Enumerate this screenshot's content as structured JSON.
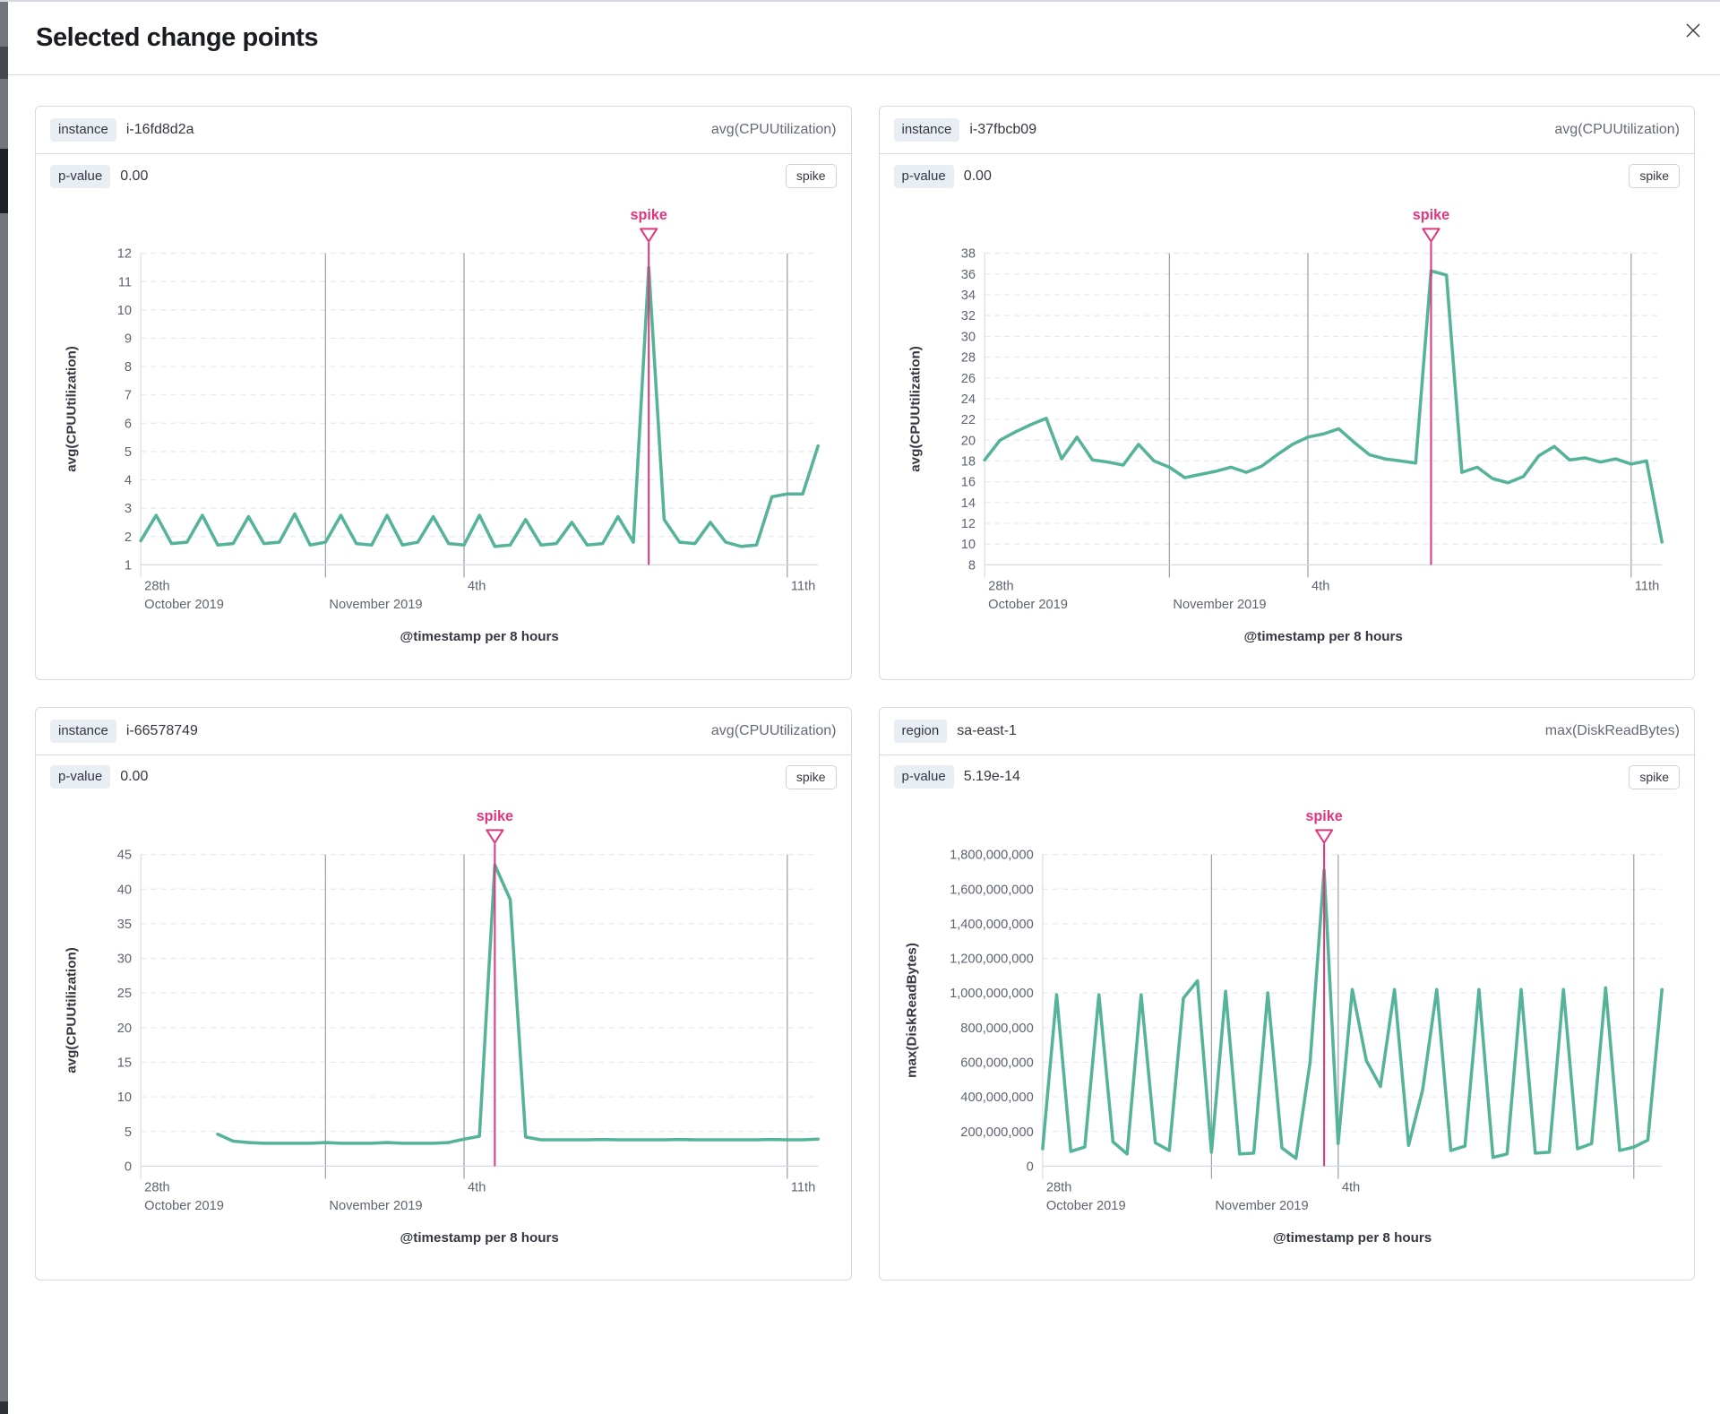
{
  "colors": {
    "series_green": "#54B399",
    "annotation_pink": "#E0367E",
    "h_gridline": "#E4E9F1",
    "date_gridline": "#9AA0A9",
    "edge_gridline": "#D9DEE5",
    "axis_line": "#D3DAE6",
    "tick_label": "#5E6470",
    "axis_title": "#343741"
  },
  "flyout": {
    "title": "Selected change points"
  },
  "panels": [
    {
      "group_badge": "instance",
      "group_value": "i-16fd8d2a",
      "metric_label": "avg(CPUUtilization)",
      "p_value_label": "p-value",
      "p_value": "0.00",
      "change_type": "spike"
    },
    {
      "group_badge": "instance",
      "group_value": "i-37fbcb09",
      "metric_label": "avg(CPUUtilization)",
      "p_value_label": "p-value",
      "p_value": "0.00",
      "change_type": "spike"
    },
    {
      "group_badge": "instance",
      "group_value": "i-66578749",
      "metric_label": "avg(CPUUtilization)",
      "p_value_label": "p-value",
      "p_value": "0.00",
      "change_type": "spike"
    },
    {
      "group_badge": "region",
      "group_value": "sa-east-1",
      "metric_label": "max(DiskReadBytes)",
      "p_value_label": "p-value",
      "p_value": "5.19e-14",
      "change_type": "spike"
    }
  ],
  "chart_data": [
    {
      "type": "line",
      "title": "instance i-16fd8d2a",
      "ylabel": "avg(CPUUtilization)",
      "xlabel": "@timestamp per 8 hours",
      "ylim": [
        1,
        12
      ],
      "y_tick_step": 1,
      "x_domain_days": 14.667,
      "points_per_day": 3,
      "x_gridlines": [
        {
          "day": 0,
          "line1": "28th",
          "line2": "October 2019",
          "edge": true
        },
        {
          "day": 4,
          "line2": "November 2019"
        },
        {
          "day": 7,
          "line1": "4th"
        },
        {
          "day": 14,
          "line1": "11th"
        }
      ],
      "annotation": {
        "label": "spike",
        "index": 33
      },
      "values": [
        1.85,
        2.75,
        1.75,
        1.8,
        2.75,
        1.7,
        1.75,
        2.7,
        1.75,
        1.8,
        2.8,
        1.7,
        1.8,
        2.75,
        1.75,
        1.7,
        2.75,
        1.7,
        1.8,
        2.7,
        1.75,
        1.7,
        2.75,
        1.65,
        1.7,
        2.6,
        1.7,
        1.75,
        2.5,
        1.7,
        1.75,
        2.7,
        1.8,
        11.5,
        2.6,
        1.8,
        1.75,
        2.5,
        1.8,
        1.65,
        1.7,
        3.4,
        3.5,
        3.5,
        5.2
      ]
    },
    {
      "type": "line",
      "title": "instance i-37fbcb09",
      "ylabel": "avg(CPUUtilization)",
      "xlabel": "@timestamp per 8 hours",
      "ylim": [
        8,
        38
      ],
      "y_tick_step": 2,
      "x_domain_days": 14.667,
      "points_per_day": 3,
      "x_gridlines": [
        {
          "day": 0,
          "line1": "28th",
          "line2": "October 2019",
          "edge": true
        },
        {
          "day": 4,
          "line2": "November 2019"
        },
        {
          "day": 7,
          "line1": "4th"
        },
        {
          "day": 14,
          "line1": "11th"
        }
      ],
      "annotation": {
        "label": "spike",
        "index": 29
      },
      "values": [
        18.1,
        20.0,
        20.8,
        21.5,
        22.1,
        18.2,
        20.3,
        18.1,
        17.9,
        17.6,
        19.6,
        18.0,
        17.4,
        16.4,
        16.7,
        17.0,
        17.4,
        16.9,
        17.5,
        18.6,
        19.6,
        20.3,
        20.6,
        21.1,
        19.8,
        18.6,
        18.2,
        18.0,
        17.8,
        36.3,
        35.9,
        16.9,
        17.4,
        16.3,
        15.9,
        16.5,
        18.5,
        19.4,
        18.1,
        18.3,
        17.9,
        18.2,
        17.7,
        18.0,
        10.2
      ]
    },
    {
      "type": "line",
      "title": "instance i-66578749",
      "ylabel": "avg(CPUUtilization)",
      "xlabel": "@timestamp per 8 hours",
      "ylim": [
        0,
        45
      ],
      "y_tick_step": 5,
      "x_domain_days": 14.667,
      "points_per_day": 3,
      "x_gridlines": [
        {
          "day": 0,
          "line1": "28th",
          "line2": "October 2019",
          "edge": true
        },
        {
          "day": 4,
          "line2": "November 2019"
        },
        {
          "day": 7,
          "line1": "4th"
        },
        {
          "day": 14,
          "line1": "11th"
        }
      ],
      "annotation": {
        "label": "spike",
        "index": 23
      },
      "values": [
        null,
        null,
        null,
        null,
        null,
        4.6,
        3.6,
        3.4,
        3.3,
        3.3,
        3.3,
        3.3,
        3.4,
        3.3,
        3.3,
        3.3,
        3.4,
        3.3,
        3.3,
        3.3,
        3.4,
        3.9,
        4.3,
        43.5,
        38.5,
        4.2,
        3.8,
        3.8,
        3.8,
        3.8,
        3.85,
        3.8,
        3.8,
        3.8,
        3.8,
        3.85,
        3.8,
        3.8,
        3.8,
        3.8,
        3.8,
        3.85,
        3.8,
        3.8,
        3.9
      ]
    },
    {
      "type": "line",
      "title": "region sa-east-1",
      "ylabel": "max(DiskReadBytes)",
      "xlabel": "@timestamp per 8 hours",
      "ylim": [
        0,
        1800000000
      ],
      "y_tick_step": 200000000,
      "x_domain_days": 14.667,
      "points_per_day": 3,
      "x_gridlines": [
        {
          "day": 0,
          "line1": "28th",
          "line2": "October 2019",
          "edge": true
        },
        {
          "day": 4,
          "line2": "November 2019"
        },
        {
          "day": 7,
          "line1": "4th"
        },
        {
          "day": 14
        }
      ],
      "annotation": {
        "label": "spike",
        "index": 20
      },
      "values": [
        100000000,
        990000000,
        85000000,
        110000000,
        990000000,
        140000000,
        70000000,
        990000000,
        135000000,
        90000000,
        970000000,
        1070000000,
        80000000,
        1010000000,
        70000000,
        75000000,
        1000000000,
        105000000,
        45000000,
        600000000,
        1710000000,
        130000000,
        1020000000,
        610000000,
        460000000,
        1020000000,
        120000000,
        440000000,
        1020000000,
        90000000,
        115000000,
        1020000000,
        50000000,
        70000000,
        1020000000,
        75000000,
        80000000,
        1020000000,
        100000000,
        130000000,
        1030000000,
        90000000,
        110000000,
        150000000,
        1020000000
      ]
    }
  ]
}
